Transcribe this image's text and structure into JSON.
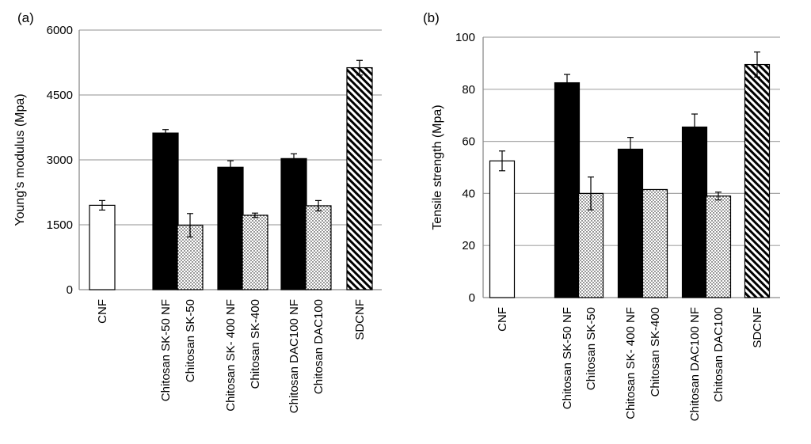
{
  "chart_data": [
    {
      "type": "bar",
      "panel_label": "(a)",
      "title": "",
      "xlabel": "",
      "ylabel": "Young’s modulus (Mpa)",
      "ylim": [
        0,
        6000
      ],
      "yticks": [
        0,
        1500,
        3000,
        4500,
        6000
      ],
      "grid": true,
      "categories": [
        "CNF",
        "Chitosan SK-50 NF",
        "Chitosan SK-50",
        "Chitosan SK- 400 NF",
        "Chitosan SK-400",
        "Chitosan DAC100 NF",
        "Chitosan DAC100",
        "SDCNF"
      ],
      "values": [
        1950,
        3620,
        1490,
        2830,
        1720,
        3030,
        1940,
        5130
      ],
      "errors": [
        110,
        80,
        270,
        150,
        50,
        110,
        120,
        170
      ],
      "fills": [
        "white",
        "black",
        "dots",
        "black",
        "dots",
        "black",
        "dots",
        "hatch"
      ]
    },
    {
      "type": "bar",
      "panel_label": "(b)",
      "title": "",
      "xlabel": "",
      "ylabel": "Tensile strength (Mpa)",
      "ylim": [
        0,
        100
      ],
      "yticks": [
        0,
        20,
        40,
        60,
        80,
        100
      ],
      "grid": true,
      "categories": [
        "CNF",
        "Chitosan SK-50 NF",
        "Chitosan SK-50",
        "Chitosan SK- 400 NF",
        "Chitosan SK-400",
        "Chitosan DAC100 NF",
        "Chitosan DAC100",
        "SDCNF"
      ],
      "values": [
        52.5,
        82.5,
        40,
        57,
        41.5,
        65.5,
        39,
        89.5
      ],
      "errors": [
        3.8,
        3.2,
        6.3,
        4.5,
        0,
        5,
        1.5,
        4.8
      ],
      "fills": [
        "white",
        "black",
        "dots",
        "black",
        "dots",
        "black",
        "dots",
        "hatch"
      ]
    }
  ]
}
